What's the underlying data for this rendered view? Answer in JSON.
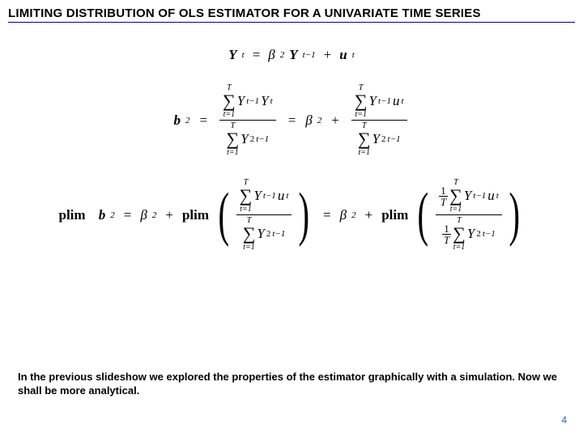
{
  "title": "LIMITING DISTRIBUTION OF OLS ESTIMATOR FOR A UNIVARIATE TIME SERIES",
  "eq1": {
    "lhs_Y": "Y",
    "lhs_sub": "t",
    "eq": "=",
    "beta": "β",
    "beta_sub": "2",
    "Y2": "Y",
    "Y2_sub": "t−1",
    "plus": "+",
    "u": "u",
    "u_sub": "t"
  },
  "eq2": {
    "b": "b",
    "b_sub": "2",
    "eq": "=",
    "sum_upper": "T",
    "sum_lower": "t=1",
    "num1_a": "Y",
    "num1_a_sub": "t−1",
    "num1_b": "Y",
    "num1_b_sub": "t",
    "den1_a": "Y",
    "den1_a_sub": "t−1",
    "den1_a_sup": "2",
    "eq2": "=",
    "beta": "β",
    "beta_sub": "2",
    "plus": "+",
    "num2_a": "Y",
    "num2_a_sub": "t−1",
    "num2_b": "u",
    "num2_b_sub": "t",
    "den2_a": "Y",
    "den2_a_sub": "t−1",
    "den2_a_sup": "2"
  },
  "eq3": {
    "plim": "plim",
    "b": "b",
    "b_sub": "2",
    "eq": "=",
    "beta": "β",
    "beta_sub": "2",
    "plus": "+",
    "plim2": "plim",
    "sum_upper": "T",
    "sum_lower": "t=1",
    "num1_a": "Y",
    "num1_a_sub": "t−1",
    "num1_b": "u",
    "num1_b_sub": "t",
    "den1_a": "Y",
    "den1_a_sub": "t−1",
    "den1_a_sup": "2",
    "eq2": "=",
    "beta2": "β",
    "beta2_sub": "2",
    "plus2": "+",
    "plim3": "plim",
    "oneT_1": "1",
    "oneT_T": "T"
  },
  "bodyText": "In the previous slideshow we explored the properties of the estimator graphically with a simulation.  Now we shall be more analytical.",
  "pageNumber": "4",
  "colors": {
    "underline": "#000099",
    "pagenum": "#3060c0",
    "background": "#ffffff",
    "text": "#000000"
  },
  "typography": {
    "title_fontsize": 15,
    "title_weight": "bold",
    "body_fontsize": 13,
    "body_weight": "bold",
    "equation_font": "Times New Roman",
    "equation_fontsize": 17
  }
}
